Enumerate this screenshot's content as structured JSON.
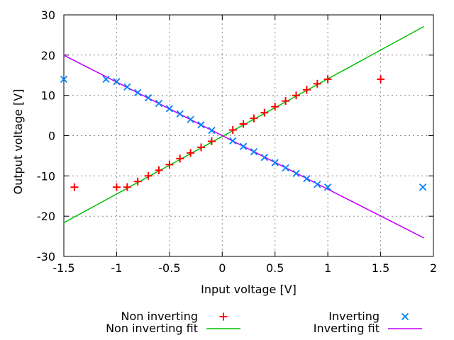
{
  "chart_data": {
    "type": "scatter",
    "xlabel": "Input voltage [V]",
    "ylabel": "Output voltage [V]",
    "xlim": [
      -1.5,
      2
    ],
    "ylim": [
      -30,
      30
    ],
    "xticks": [
      -1.5,
      -1,
      -0.5,
      0,
      0.5,
      1,
      1.5,
      2
    ],
    "xtick_labels": [
      "-1.5",
      "-1",
      "-0.5",
      "0",
      "0.5",
      "1",
      "1.5",
      "2"
    ],
    "yticks": [
      -30,
      -20,
      -10,
      0,
      10,
      20,
      30
    ],
    "ytick_labels": [
      "-30",
      "-20",
      "-10",
      "0",
      "10",
      "20",
      "30"
    ],
    "grid": true,
    "legend_position": "below-plot, two columns",
    "series": [
      {
        "name": "Non inverting",
        "type": "points",
        "marker": "plus",
        "color": "#ff0000",
        "points": [
          [
            -1.4,
            -12.8
          ],
          [
            -1.0,
            -12.8
          ],
          [
            -0.9,
            -12.8
          ],
          [
            -0.8,
            -11.4
          ],
          [
            -0.7,
            -10.0
          ],
          [
            -0.6,
            -8.6
          ],
          [
            -0.5,
            -7.2
          ],
          [
            -0.4,
            -5.7
          ],
          [
            -0.3,
            -4.3
          ],
          [
            -0.2,
            -2.9
          ],
          [
            -0.1,
            -1.4
          ],
          [
            0.1,
            1.4
          ],
          [
            0.2,
            2.9
          ],
          [
            0.3,
            4.3
          ],
          [
            0.4,
            5.7
          ],
          [
            0.5,
            7.2
          ],
          [
            0.6,
            8.6
          ],
          [
            0.7,
            10.0
          ],
          [
            0.8,
            11.4
          ],
          [
            0.9,
            12.9
          ],
          [
            1.0,
            14.0
          ],
          [
            1.5,
            14.0
          ]
        ]
      },
      {
        "name": "Non inverting fit",
        "type": "line",
        "color": "#00c000",
        "slope": 14.3,
        "intercept": -0.2,
        "x_range": [
          -1.5,
          1.91
        ]
      },
      {
        "name": "Inverting",
        "type": "points",
        "marker": "times",
        "color": "#0080ff",
        "points": [
          [
            -1.5,
            14.0
          ],
          [
            -1.1,
            14.0
          ],
          [
            -1.0,
            13.4
          ],
          [
            -0.9,
            12.1
          ],
          [
            -0.8,
            10.7
          ],
          [
            -0.7,
            9.4
          ],
          [
            -0.6,
            8.0
          ],
          [
            -0.5,
            6.7
          ],
          [
            -0.4,
            5.4
          ],
          [
            -0.3,
            4.0
          ],
          [
            -0.2,
            2.7
          ],
          [
            -0.1,
            1.3
          ],
          [
            0.1,
            -1.3
          ],
          [
            0.2,
            -2.7
          ],
          [
            0.3,
            -4.0
          ],
          [
            0.4,
            -5.4
          ],
          [
            0.5,
            -6.7
          ],
          [
            0.6,
            -8.0
          ],
          [
            0.7,
            -9.4
          ],
          [
            0.8,
            -10.7
          ],
          [
            0.9,
            -12.1
          ],
          [
            1.0,
            -12.8
          ],
          [
            1.9,
            -12.8
          ]
        ]
      },
      {
        "name": "Inverting fit",
        "type": "line",
        "color": "#c000ff",
        "slope": -13.3,
        "intercept": 0.0,
        "x_range": [
          -1.5,
          1.91
        ]
      }
    ]
  }
}
